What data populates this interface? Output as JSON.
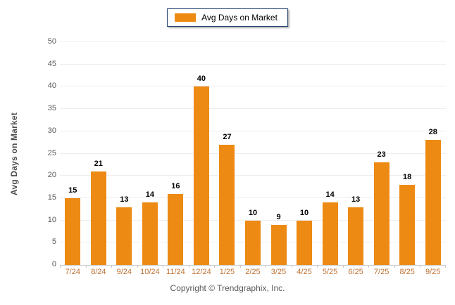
{
  "chart_data": {
    "type": "bar",
    "categories": [
      "7/24",
      "8/24",
      "9/24",
      "10/24",
      "11/24",
      "12/24",
      "1/25",
      "2/25",
      "3/25",
      "4/25",
      "5/25",
      "6/25",
      "7/25",
      "8/25",
      "9/25"
    ],
    "values": [
      15,
      21,
      13,
      14,
      16,
      40,
      27,
      10,
      9,
      10,
      14,
      13,
      23,
      18,
      28
    ],
    "title": "",
    "xlabel": "",
    "ylabel": "Avg Days on Market",
    "ylim": [
      0,
      50
    ],
    "ytick_step": 5,
    "grid": true,
    "data_labels": true,
    "legend": [
      "Avg Days on Market"
    ],
    "legend_position": "top-center",
    "bar_color": "#ED8A13"
  },
  "colors": {
    "bar": "#ED8A13",
    "legend_border": "#1B3A6B",
    "gridline": "#EDEDED",
    "axis_line": "#C9C9C9",
    "y_tick_text": "#595959",
    "x_tick_text": "#BE7032",
    "value_label_text": "#000000"
  },
  "footer": {
    "copyright": "Copyright © Trendgraphix, Inc."
  }
}
